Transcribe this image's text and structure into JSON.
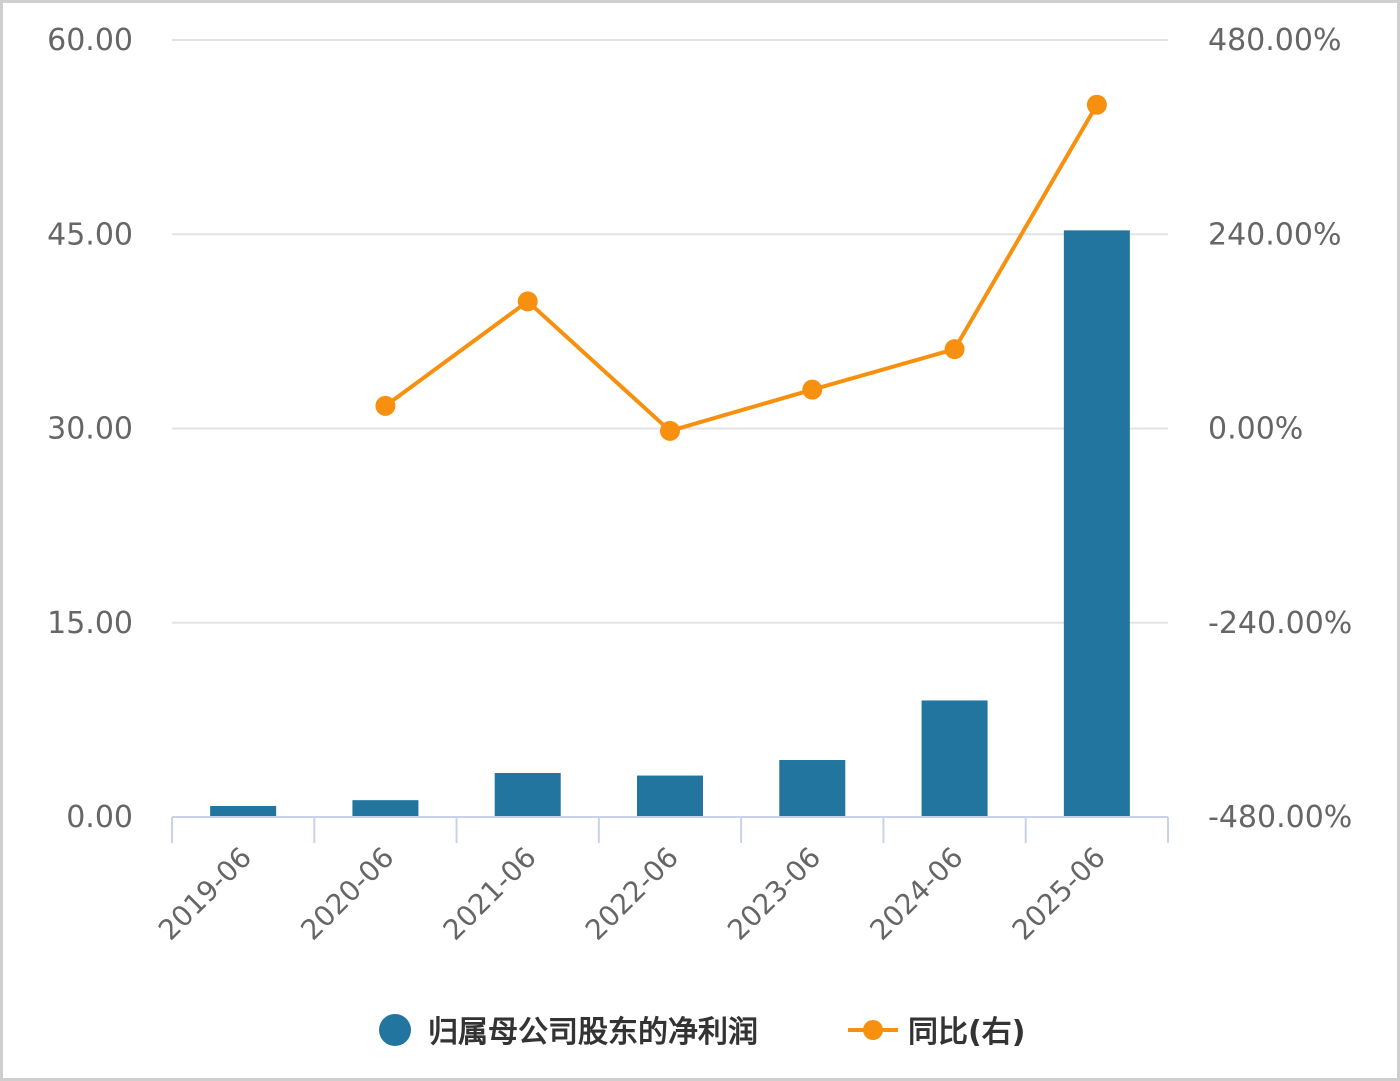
{
  "chart_data": {
    "type": "bar",
    "categories": [
      "2019-06",
      "2020-06",
      "2021-06",
      "2022-06",
      "2023-06",
      "2024-06",
      "2025-06"
    ],
    "series": [
      {
        "name": "归属母公司股东的净利润",
        "type": "bar",
        "axis": "left",
        "color": "#21759f",
        "values": [
          0.85,
          1.3,
          3.4,
          3.2,
          4.4,
          9.0,
          45.3
        ]
      },
      {
        "name": "同比(右)",
        "type": "line",
        "axis": "right",
        "color": "#f7900f",
        "values": [
          null,
          28.0,
          157.0,
          -3.0,
          48.0,
          98.0,
          400.0
        ]
      }
    ],
    "y_left": {
      "ylim": [
        0,
        60
      ],
      "ticks": [
        0,
        15,
        30,
        45,
        60
      ],
      "tick_labels": [
        "0.00",
        "15.00",
        "30.00",
        "45.00",
        "60.00"
      ]
    },
    "y_right": {
      "ylim": [
        -480,
        480
      ],
      "ticks": [
        -480,
        -240,
        0,
        240,
        480
      ],
      "tick_labels": [
        "-480.00%",
        "-240.00%",
        "0.00%",
        "240.00%",
        "480.00%"
      ]
    },
    "grid": true,
    "legend_position": "bottom-center"
  }
}
